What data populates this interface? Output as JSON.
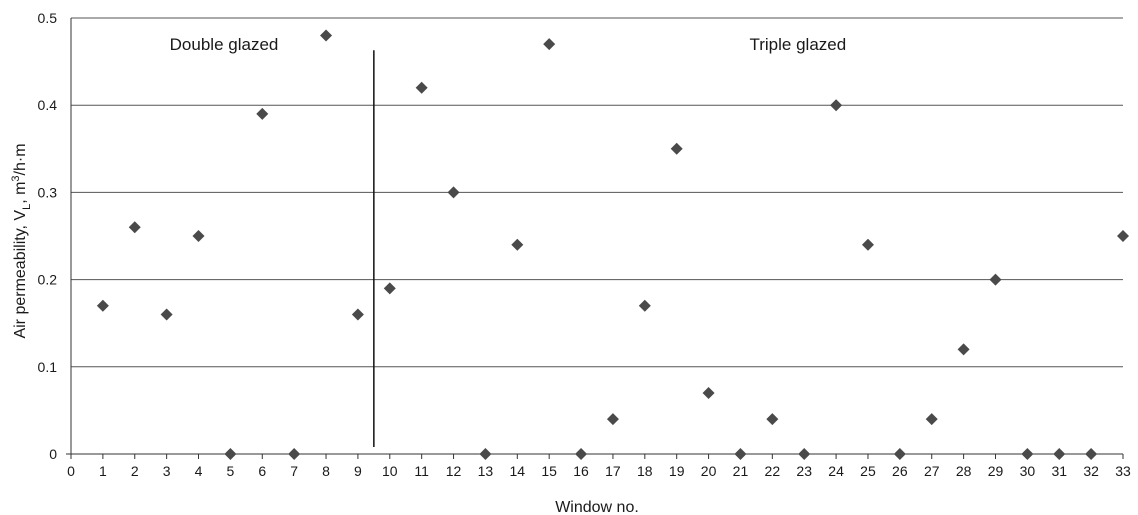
{
  "chart_data": {
    "type": "scatter",
    "xlabel": "Window no.",
    "ylabel": {
      "prefix": "Air permeability, V",
      "subscript": "L",
      "mid": ", m",
      "superscript": "3",
      "suffix": "/h·m"
    },
    "xlim": [
      0,
      33
    ],
    "ylim": [
      0,
      0.5
    ],
    "x_ticks": [
      "0",
      "1",
      "2",
      "3",
      "4",
      "5",
      "6",
      "7",
      "8",
      "9",
      "10",
      "11",
      "12",
      "13",
      "14",
      "15",
      "16",
      "17",
      "18",
      "19",
      "20",
      "21",
      "22",
      "23",
      "24",
      "25",
      "26",
      "27",
      "28",
      "29",
      "30",
      "31",
      "32",
      "33"
    ],
    "y_ticks": [
      "0",
      "0.1",
      "0.2",
      "0.3",
      "0.4",
      "0.5"
    ],
    "grid": true,
    "divider_x": 9.5,
    "annotations": [
      {
        "text": "Double glazed",
        "x": 4.8,
        "y": 0.47
      },
      {
        "text": "Triple glazed",
        "x": 22.8,
        "y": 0.47
      }
    ],
    "series": [
      {
        "marker": "diamond",
        "color": "#4a4a4a",
        "points": [
          {
            "x": 1,
            "y": 0.17
          },
          {
            "x": 2,
            "y": 0.26
          },
          {
            "x": 3,
            "y": 0.16
          },
          {
            "x": 4,
            "y": 0.25
          },
          {
            "x": 5,
            "y": 0
          },
          {
            "x": 6,
            "y": 0.39
          },
          {
            "x": 7,
            "y": 0
          },
          {
            "x": 8,
            "y": 0.48
          },
          {
            "x": 9,
            "y": 0.16
          },
          {
            "x": 10,
            "y": 0.19
          },
          {
            "x": 11,
            "y": 0.42
          },
          {
            "x": 12,
            "y": 0.3
          },
          {
            "x": 13,
            "y": 0
          },
          {
            "x": 14,
            "y": 0.24
          },
          {
            "x": 15,
            "y": 0.47
          },
          {
            "x": 16,
            "y": 0
          },
          {
            "x": 17,
            "y": 0.04
          },
          {
            "x": 18,
            "y": 0.17
          },
          {
            "x": 19,
            "y": 0.35
          },
          {
            "x": 20,
            "y": 0.07
          },
          {
            "x": 21,
            "y": 0
          },
          {
            "x": 22,
            "y": 0.04
          },
          {
            "x": 23,
            "y": 0
          },
          {
            "x": 24,
            "y": 0.4
          },
          {
            "x": 25,
            "y": 0.24
          },
          {
            "x": 26,
            "y": 0
          },
          {
            "x": 27,
            "y": 0.04
          },
          {
            "x": 28,
            "y": 0.12
          },
          {
            "x": 29,
            "y": 0.2
          },
          {
            "x": 30,
            "y": 0
          },
          {
            "x": 31,
            "y": 0
          },
          {
            "x": 32,
            "y": 0
          },
          {
            "x": 33,
            "y": 0.25
          }
        ]
      }
    ]
  }
}
